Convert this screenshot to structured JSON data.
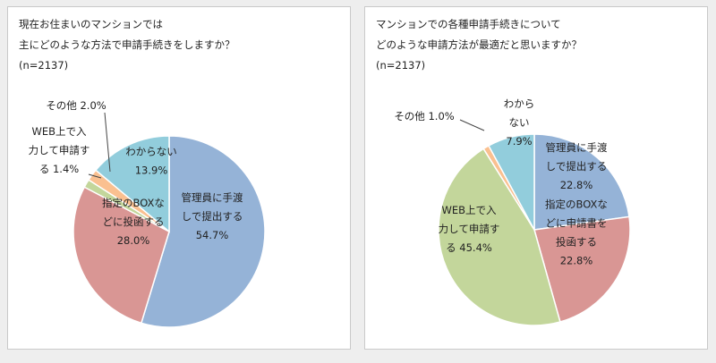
{
  "chart_data": [
    {
      "type": "pie",
      "title": [
        "現在お住まいのマンションでは",
        "主にどのような方法で申請手続きをしますか？",
        "(n=2137)"
      ],
      "slices": [
        {
          "label": [
            "管理員に手渡",
            "しで提出する",
            "54.7%"
          ],
          "value": 54.7,
          "color": "#95b3d7"
        },
        {
          "label": [
            "指定のBOXな",
            "どに投函する",
            "28.0%"
          ],
          "value": 28.0,
          "color": "#d99694"
        },
        {
          "label": [
            "WEB上で入",
            "力して申請す",
            "る 1.4%"
          ],
          "value": 1.4,
          "color": "#c3d69b"
        },
        {
          "label": [
            "その他 2.0%"
          ],
          "value": 2.0,
          "color": "#fac090"
        },
        {
          "label": [
            "わからない",
            "13.9%"
          ],
          "value": 13.9,
          "color": "#92cddc"
        }
      ]
    },
    {
      "type": "pie",
      "title": [
        "マンションでの各種申請手続きについて",
        "どのような申請方法が最適だと思いますか？",
        "(n=2137)"
      ],
      "slices": [
        {
          "label": [
            "管理員に手渡",
            "しで提出する",
            "22.8%"
          ],
          "value": 22.8,
          "color": "#95b3d7"
        },
        {
          "label": [
            "指定のBOXな",
            "どに申請書を",
            "投函する",
            "22.8%"
          ],
          "value": 22.8,
          "color": "#d99694"
        },
        {
          "label": [
            "WEB上で入",
            "力して申請す",
            "る 45.4%"
          ],
          "value": 45.4,
          "color": "#c3d69b"
        },
        {
          "label": [
            "その他 1.0%"
          ],
          "value": 1.0,
          "color": "#fac090"
        },
        {
          "label": [
            "わから",
            "ない",
            "7.9%"
          ],
          "value": 7.9,
          "color": "#92cddc"
        }
      ]
    }
  ]
}
